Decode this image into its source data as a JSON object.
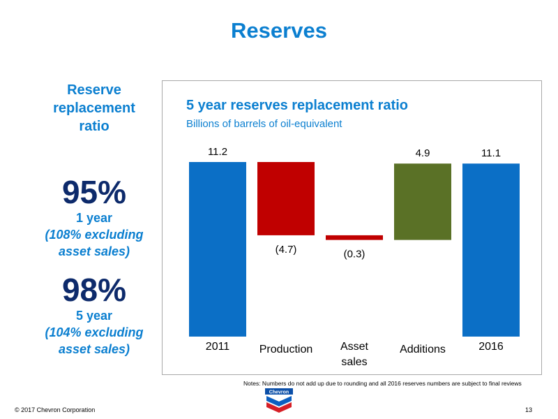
{
  "slide": {
    "title": "Reserves",
    "left_heading": "Reserve replacement ratio",
    "stats": [
      {
        "value": "95%",
        "period": "1 year",
        "note_line1": "(108% excluding",
        "note_line2": "asset sales)"
      },
      {
        "value": "98%",
        "period": "5 year",
        "note_line1": "(104% excluding",
        "note_line2": "asset sales)"
      }
    ],
    "notes": "Notes: Numbers do not add up due to rounding and all 2016 reserves numbers are subject to final reviews",
    "copyright": "© 2017 Chevron Corporation",
    "page_number": "13",
    "logo_text": "Chevron"
  },
  "chart_data": {
    "type": "bar",
    "title": "5 year reserves replacement ratio",
    "subtitle": "Billions of barrels of oil-equivalent",
    "categories": [
      {
        "label_lines": [
          "2011"
        ],
        "value": 11.2,
        "data_label": "11.2",
        "kind": "total",
        "color": "#0b6fc6"
      },
      {
        "label_lines": [
          "Production"
        ],
        "value": -4.7,
        "data_label": "(4.7)",
        "kind": "change",
        "color": "#c00000"
      },
      {
        "label_lines": [
          "Asset",
          "sales"
        ],
        "value": -0.3,
        "data_label": "(0.3)",
        "kind": "change",
        "color": "#c00000"
      },
      {
        "label_lines": [
          "Additions"
        ],
        "value": 4.9,
        "data_label": "4.9",
        "kind": "change",
        "color": "#5a7126"
      },
      {
        "label_lines": [
          "2016"
        ],
        "value": 11.1,
        "data_label": "11.1",
        "kind": "total",
        "color": "#0b6fc6"
      }
    ],
    "ylim": [
      0,
      11.2
    ],
    "grid": false,
    "legend": "none"
  }
}
